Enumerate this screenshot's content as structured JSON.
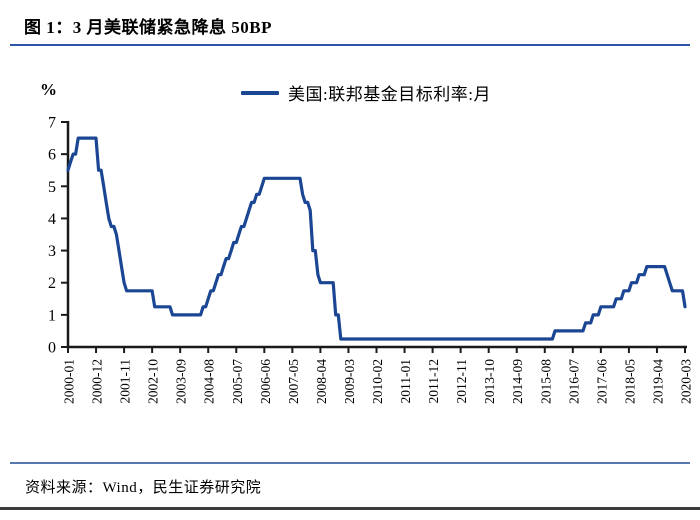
{
  "header": {
    "title": "图 1：3 月美联储紧急降息 50BP"
  },
  "footer": {
    "source": "资料来源：Wind，民生证券研究院"
  },
  "colors": {
    "line": "#1B4693",
    "axis": "#1A1A1A",
    "title_rule": "#2E55A8",
    "footer_rule": "#5A78B0",
    "bottom_bar": "#3C3C3C"
  },
  "chart_data": {
    "type": "line",
    "title": "图 1：3 月美联储紧急降息 50BP",
    "unit_label": "%",
    "legend_position": "top-center",
    "grid": false,
    "ylim": [
      0,
      7
    ],
    "y_ticks": [
      0,
      1,
      2,
      3,
      4,
      5,
      6,
      7
    ],
    "x_range": [
      "2000-01",
      "2020-03"
    ],
    "x_tick_interval_months": 11,
    "x_tick_labels": [
      "2000-01",
      "2000-12",
      "2001-11",
      "2002-10",
      "2003-09",
      "2004-08",
      "2005-07",
      "2006-06",
      "2007-05",
      "2008-04",
      "2009-03",
      "2010-02",
      "2011-01",
      "2011-12",
      "2012-11",
      "2013-10",
      "2014-09",
      "2015-08",
      "2016-07",
      "2017-06",
      "2018-05",
      "2019-04",
      "2020-03"
    ],
    "series": [
      {
        "name": "美国:联邦基金目标利率:月",
        "sampling": "monthly step series; value holds constant until next listed change",
        "step_points": [
          [
            "2000-01",
            5.5
          ],
          [
            "2000-02",
            5.75
          ],
          [
            "2000-03",
            6.0
          ],
          [
            "2000-05",
            6.5
          ],
          [
            "2001-01",
            5.5
          ],
          [
            "2001-03",
            5.0
          ],
          [
            "2001-04",
            4.5
          ],
          [
            "2001-05",
            4.0
          ],
          [
            "2001-06",
            3.75
          ],
          [
            "2001-08",
            3.5
          ],
          [
            "2001-09",
            3.0
          ],
          [
            "2001-10",
            2.5
          ],
          [
            "2001-11",
            2.0
          ],
          [
            "2001-12",
            1.75
          ],
          [
            "2002-11",
            1.25
          ],
          [
            "2003-06",
            1.0
          ],
          [
            "2004-06",
            1.25
          ],
          [
            "2004-08",
            1.5
          ],
          [
            "2004-09",
            1.75
          ],
          [
            "2004-11",
            2.0
          ],
          [
            "2004-12",
            2.25
          ],
          [
            "2005-02",
            2.5
          ],
          [
            "2005-03",
            2.75
          ],
          [
            "2005-05",
            3.0
          ],
          [
            "2005-06",
            3.25
          ],
          [
            "2005-08",
            3.5
          ],
          [
            "2005-09",
            3.75
          ],
          [
            "2005-11",
            4.0
          ],
          [
            "2005-12",
            4.25
          ],
          [
            "2006-01",
            4.5
          ],
          [
            "2006-03",
            4.75
          ],
          [
            "2006-05",
            5.0
          ],
          [
            "2006-06",
            5.25
          ],
          [
            "2007-09",
            4.75
          ],
          [
            "2007-10",
            4.5
          ],
          [
            "2007-12",
            4.25
          ],
          [
            "2008-01",
            3.0
          ],
          [
            "2008-03",
            2.25
          ],
          [
            "2008-04",
            2.0
          ],
          [
            "2008-10",
            1.0
          ],
          [
            "2008-12",
            0.25
          ],
          [
            "2015-12",
            0.5
          ],
          [
            "2016-12",
            0.75
          ],
          [
            "2017-03",
            1.0
          ],
          [
            "2017-06",
            1.25
          ],
          [
            "2017-12",
            1.5
          ],
          [
            "2018-03",
            1.75
          ],
          [
            "2018-06",
            2.0
          ],
          [
            "2018-09",
            2.25
          ],
          [
            "2018-12",
            2.5
          ],
          [
            "2019-08",
            2.25
          ],
          [
            "2019-09",
            2.0
          ],
          [
            "2019-10",
            1.75
          ],
          [
            "2020-03",
            1.25
          ]
        ]
      }
    ]
  }
}
